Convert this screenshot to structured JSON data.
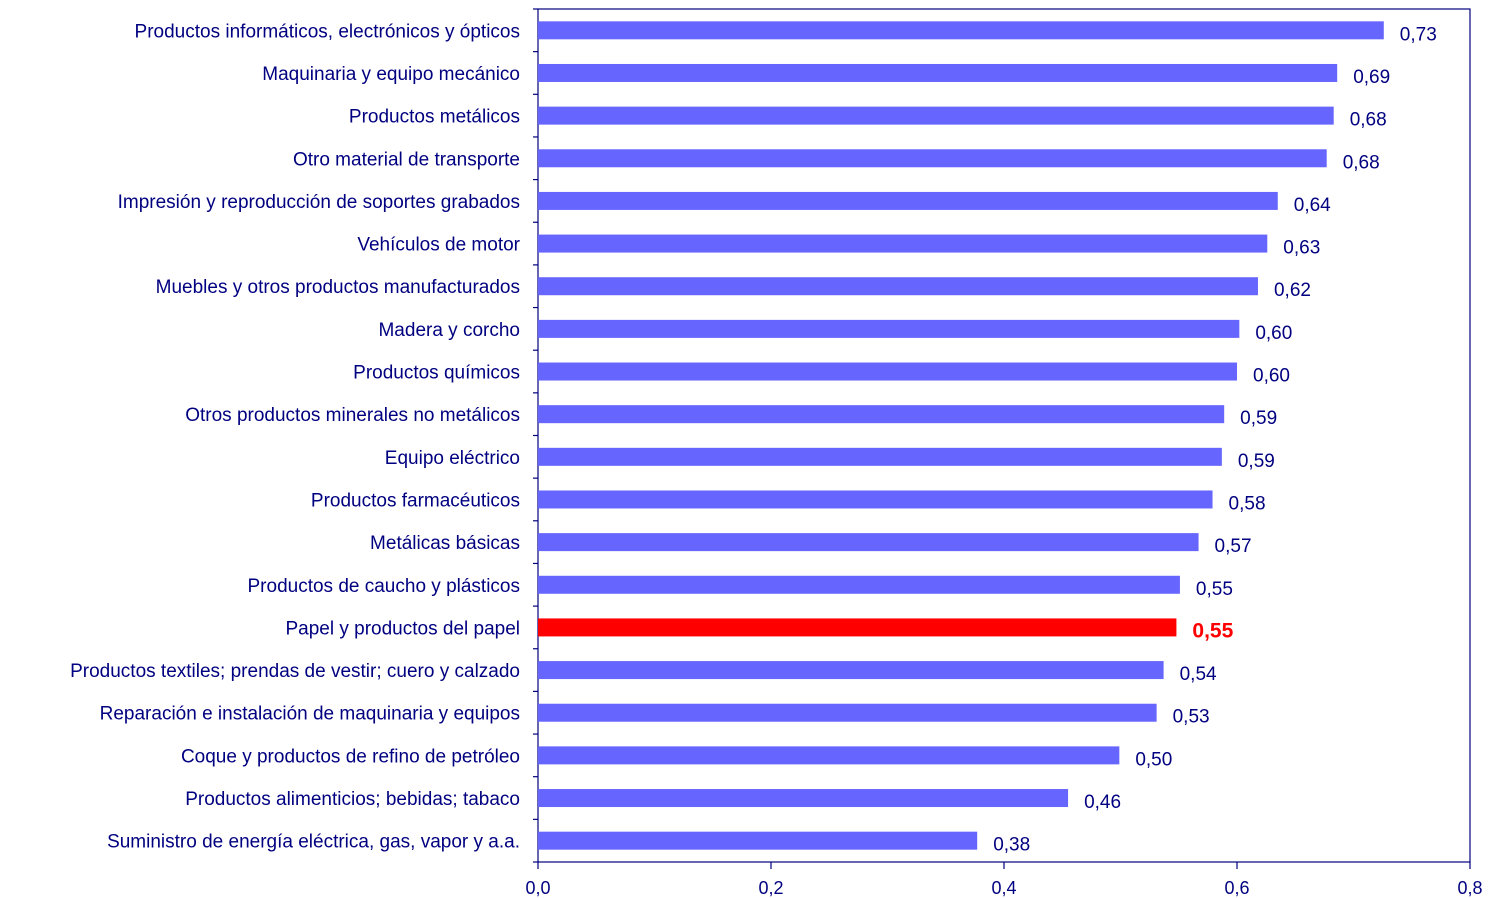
{
  "chart_data": {
    "type": "bar",
    "orientation": "horizontal",
    "categories": [
      "Productos informáticos, electrónicos y ópticos",
      "Maquinaria y equipo mecánico",
      "Productos metálicos",
      "Otro material de transporte",
      "Impresión y reproducción de soportes grabados",
      "Vehículos de motor",
      "Muebles y otros productos manufacturados",
      "Madera y corcho",
      "Productos químicos",
      "Otros productos minerales no metálicos",
      "Equipo eléctrico",
      "Productos farmacéuticos ",
      "Metálicas básicas",
      "Productos de caucho y plásticos",
      "Papel y productos del papel",
      "Productos textiles; prendas de vestir; cuero y calzado",
      "Reparación e instalación de maquinaria y equipos",
      "Coque y productos de refino de petróleo",
      "Productos alimenticios; bebidas; tabaco",
      "Suministro de energía eléctrica, gas, vapor y a.a."
    ],
    "values": [
      0.726,
      0.686,
      0.683,
      0.677,
      0.635,
      0.626,
      0.618,
      0.602,
      0.6,
      0.589,
      0.587,
      0.579,
      0.567,
      0.551,
      0.548,
      0.537,
      0.531,
      0.499,
      0.455,
      0.377
    ],
    "value_labels": [
      "0,73",
      "0,69",
      "0,68",
      "0,68",
      "0,64",
      "0,63",
      "0,62",
      "0,60",
      "0,60",
      "0,59",
      "0,59",
      "0,58",
      "0,57",
      "0,55",
      "0,55",
      "0,54",
      "0,53",
      "0,50",
      "0,46",
      "0,38"
    ],
    "highlight_index": 14,
    "xlim": [
      0,
      0.8
    ],
    "xticks": [
      0,
      0.2,
      0.4,
      0.6,
      0.8
    ],
    "xtick_labels": [
      "0,0",
      "0,2",
      "0,4",
      "0,6",
      "0,8"
    ],
    "title": "",
    "xlabel": "",
    "ylabel": "",
    "grid": false,
    "legend": "none",
    "colors": {
      "bar": "#6666ff",
      "highlight": "#ff0000",
      "text": "#000080",
      "axis": "#000080"
    }
  }
}
